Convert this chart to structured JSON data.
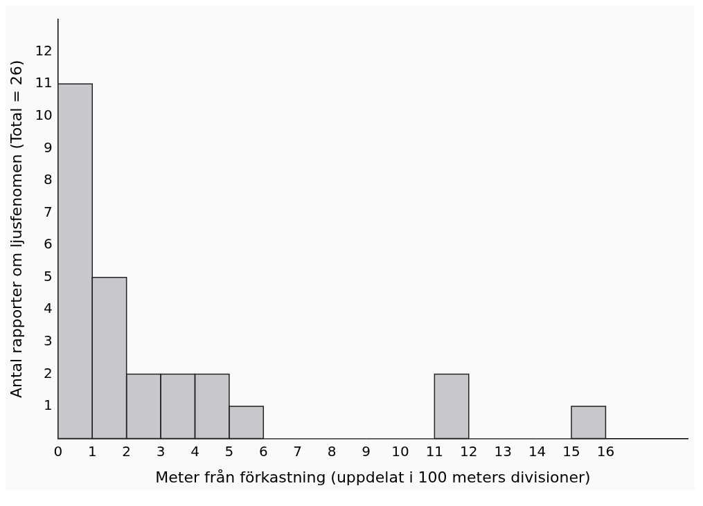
{
  "chart_data": {
    "type": "histogram",
    "xlabel": "Meter från förkastning (uppdelat i 100 meters divisioner)",
    "ylabel": "Antal rapporter om ljusfenomen (Total = 26)",
    "bins": [
      0,
      1,
      2,
      3,
      4,
      5,
      6,
      7,
      8,
      9,
      10,
      11,
      12,
      13,
      14,
      15,
      16
    ],
    "values": [
      11,
      5,
      2,
      2,
      2,
      1,
      0,
      0,
      0,
      0,
      0,
      2,
      0,
      0,
      0,
      1
    ],
    "color": "#c8c8cc",
    "xlim": [
      0,
      18.4
    ],
    "xticks": [
      0,
      1,
      2,
      3,
      4,
      5,
      6,
      7,
      8,
      9,
      10,
      11,
      12,
      13,
      14,
      15,
      16
    ],
    "ylim": [
      0,
      13
    ],
    "yticks": [
      1,
      2,
      3,
      4,
      5,
      6,
      7,
      8,
      9,
      10,
      11,
      12
    ],
    "grid": false,
    "legend": false
  }
}
